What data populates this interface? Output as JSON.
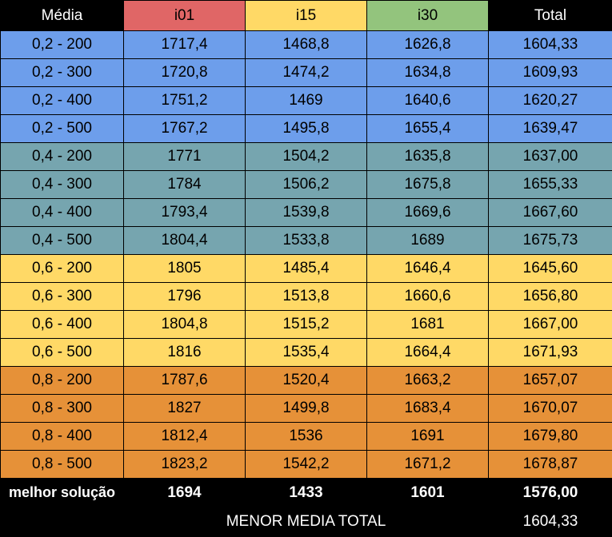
{
  "header": [
    "Média",
    "i01",
    "i15",
    "i30",
    "Total"
  ],
  "groups": [
    {
      "color": "blue",
      "rows": [
        [
          "0,2 - 200",
          "1717,4",
          "1468,8",
          "1626,8",
          "1604,33"
        ],
        [
          "0,2 - 300",
          "1720,8",
          "1474,2",
          "1634,8",
          "1609,93"
        ],
        [
          "0,2 - 400",
          "1751,2",
          "1469",
          "1640,6",
          "1620,27"
        ],
        [
          "0,2 - 500",
          "1767,2",
          "1495,8",
          "1655,4",
          "1639,47"
        ]
      ]
    },
    {
      "color": "teal",
      "rows": [
        [
          "0,4 - 200",
          "1771",
          "1504,2",
          "1635,8",
          "1637,00"
        ],
        [
          "0,4 - 300",
          "1784",
          "1506,2",
          "1675,8",
          "1655,33"
        ],
        [
          "0,4 - 400",
          "1793,4",
          "1539,8",
          "1669,6",
          "1667,60"
        ],
        [
          "0,4 - 500",
          "1804,4",
          "1533,8",
          "1689",
          "1675,73"
        ]
      ]
    },
    {
      "color": "yellow",
      "rows": [
        [
          "0,6 - 200",
          "1805",
          "1485,4",
          "1646,4",
          "1645,60"
        ],
        [
          "0,6 - 300",
          "1796",
          "1513,8",
          "1660,6",
          "1656,80"
        ],
        [
          "0,6 - 400",
          "1804,8",
          "1515,2",
          "1681",
          "1667,00"
        ],
        [
          "0,6 - 500",
          "1816",
          "1535,4",
          "1664,4",
          "1671,93"
        ]
      ]
    },
    {
      "color": "orange",
      "rows": [
        [
          "0,8 - 200",
          "1787,6",
          "1520,4",
          "1663,2",
          "1657,07"
        ],
        [
          "0,8 - 300",
          "1827",
          "1499,8",
          "1683,4",
          "1670,07"
        ],
        [
          "0,8 - 400",
          "1812,4",
          "1536",
          "1691",
          "1679,80"
        ],
        [
          "0,8 - 500",
          "1823,2",
          "1542,2",
          "1671,2",
          "1678,87"
        ]
      ]
    }
  ],
  "best": [
    "melhor solução",
    "1694",
    "1433",
    "1601",
    "1576,00"
  ],
  "menor": {
    "label": "MENOR MEDIA TOTAL",
    "value": "1604,33"
  }
}
